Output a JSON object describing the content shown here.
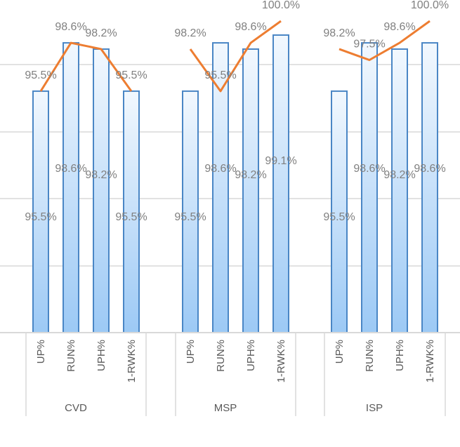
{
  "chart_data": {
    "type": "bar",
    "groups": [
      {
        "name": "CVD",
        "categories": [
          "UP%",
          "RUN%",
          "UPH%",
          "1-RWK%"
        ]
      },
      {
        "name": "MSP",
        "categories": [
          "UP%",
          "RUN%",
          "UPH%",
          "1-RWK%"
        ]
      },
      {
        "name": "ISP",
        "categories": [
          "UP%",
          "RUN%",
          "UPH%",
          "1-RWK%"
        ]
      }
    ],
    "series": [
      {
        "kind": "bar",
        "color": "#4a86c5",
        "fill_top": "#f2f8fe",
        "fill_bottom": "#9cc9f5",
        "values": [
          [
            95.5,
            98.6,
            98.2,
            95.5
          ],
          [
            95.5,
            98.6,
            98.2,
            99.1
          ],
          [
            95.5,
            98.6,
            98.2,
            98.6
          ]
        ],
        "labels": [
          [
            "95.5%",
            "98.6%",
            "98.2%",
            "95.5%"
          ],
          [
            "95.5%",
            "98.6%",
            "98.2%",
            "99.1%"
          ],
          [
            "95.5%",
            "98.6%",
            "98.2%",
            "98.6%"
          ]
        ]
      },
      {
        "kind": "line",
        "color": "#ed7d31",
        "values": [
          [
            95.5,
            98.6,
            98.2,
            95.5
          ],
          [
            98.2,
            95.5,
            98.6,
            100.0
          ],
          [
            98.2,
            97.5,
            98.6,
            100.0
          ]
        ],
        "labels": [
          [
            "95.5%",
            "98.6%",
            "98.2%",
            "95.5%"
          ],
          [
            "98.2%",
            "95.5%",
            "98.6%",
            "100.0%"
          ],
          [
            "98.2%",
            "97.5%",
            "98.6%",
            "100.0%"
          ]
        ]
      }
    ],
    "ylim": [
      80,
      100
    ],
    "grid": true,
    "gridline_color": "#d9d9d9"
  }
}
